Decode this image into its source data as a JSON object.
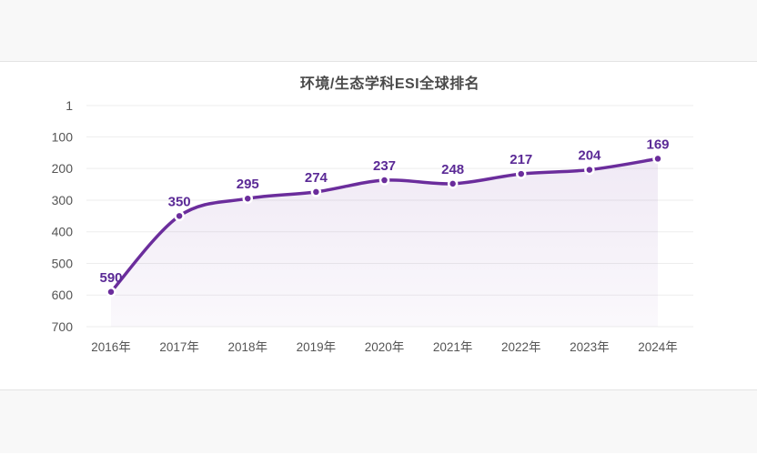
{
  "page": {
    "background_strip_color": "#f8f8f8",
    "card_background": "#ffffff",
    "border_color": "#e3e3e3"
  },
  "chart_data": {
    "type": "line",
    "title": "环境/生态学科ESI全球排名",
    "categories": [
      "2016年",
      "2017年",
      "2018年",
      "2019年",
      "2020年",
      "2021年",
      "2022年",
      "2023年",
      "2024年"
    ],
    "values": [
      590,
      350,
      295,
      274,
      237,
      248,
      217,
      204,
      169
    ],
    "y_ticks": [
      1,
      100,
      200,
      300,
      400,
      500,
      600,
      700
    ],
    "ylim": [
      1,
      700
    ],
    "y_axis_inverted": true,
    "xlabel": "",
    "ylabel": "",
    "grid": "horizontal",
    "legend": "none",
    "smooth": true,
    "area_fill": true,
    "line_color": "#6b2d9c",
    "marker_color": "#6b2d9c",
    "marker_halo_color": "#ffffff",
    "label_color": "#5b2a96",
    "area_fill_top": "rgba(107,45,156,0.10)",
    "area_fill_bottom": "rgba(107,45,156,0.03)",
    "gridline_color": "#ededed",
    "axis_text_color": "#555555",
    "title_color": "#4a4a4a"
  }
}
